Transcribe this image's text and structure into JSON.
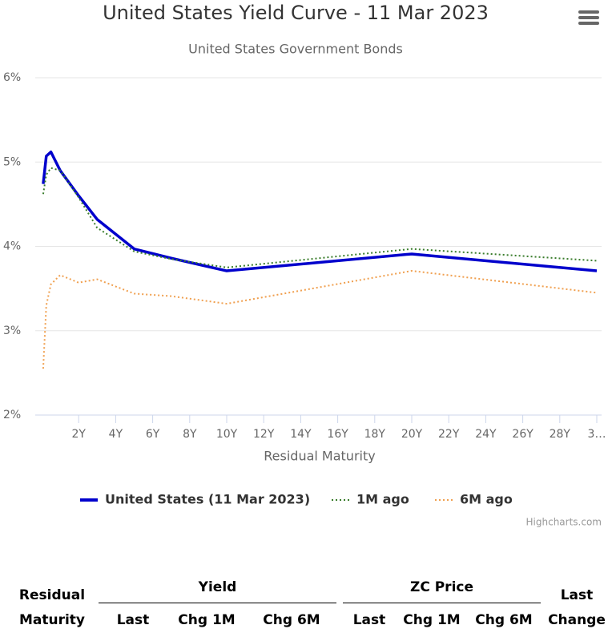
{
  "chart_data": {
    "type": "line",
    "title": "United States Yield Curve - 11 Mar 2023",
    "subtitle": "United States Government Bonds",
    "x_label": "Residual Maturity",
    "x": [
      0.083,
      0.25,
      0.5,
      1,
      2,
      3,
      5,
      7,
      10,
      20,
      30
    ],
    "series": [
      {
        "name": "United States (11 Mar 2023)",
        "color": "#0000cc",
        "dash": "solid",
        "values": [
          4.74,
          5.07,
          5.12,
          4.9,
          4.6,
          4.32,
          3.97,
          3.86,
          3.71,
          3.91,
          3.71
        ]
      },
      {
        "name": "1M ago",
        "color": "#3a7d2c",
        "dash": "dotted",
        "values": [
          4.62,
          4.85,
          4.93,
          4.9,
          4.58,
          4.22,
          3.94,
          3.85,
          3.75,
          3.97,
          3.83
        ]
      },
      {
        "name": "6M ago",
        "color": "#f0a050",
        "dash": "dotted",
        "values": [
          2.55,
          3.3,
          3.55,
          3.66,
          3.57,
          3.61,
          3.44,
          3.41,
          3.32,
          3.71,
          3.45
        ]
      }
    ],
    "xlim": [
      0,
      30
    ],
    "xticks": [
      {
        "value": 2,
        "label": "2Y"
      },
      {
        "value": 4,
        "label": "4Y"
      },
      {
        "value": 6,
        "label": "6Y"
      },
      {
        "value": 8,
        "label": "8Y"
      },
      {
        "value": 10,
        "label": "10Y"
      },
      {
        "value": 12,
        "label": "12Y"
      },
      {
        "value": 14,
        "label": "14Y"
      },
      {
        "value": 16,
        "label": "16Y"
      },
      {
        "value": 18,
        "label": "18Y"
      },
      {
        "value": 20,
        "label": "20Y"
      },
      {
        "value": 22,
        "label": "22Y"
      },
      {
        "value": 24,
        "label": "24Y"
      },
      {
        "value": 26,
        "label": "26Y"
      },
      {
        "value": 28,
        "label": "28Y"
      },
      {
        "value": 30,
        "label": "3…"
      }
    ],
    "ylim": [
      2,
      6
    ],
    "yticks": [
      {
        "value": 2,
        "label": "2%"
      },
      {
        "value": 3,
        "label": "3%"
      },
      {
        "value": 4,
        "label": "4%"
      },
      {
        "value": 5,
        "label": "5%"
      },
      {
        "value": 6,
        "label": "6%"
      }
    ],
    "grid": true,
    "legend": "bottom",
    "credits": "Highcharts.com"
  },
  "table": {
    "header": {
      "maturity": "Residual Maturity",
      "yield": "Yield",
      "zc_price": "ZC Price",
      "last_change": "Last Change",
      "sub": [
        "Last",
        "Chg 1M",
        "Chg 6M",
        "Last",
        "Chg 1M",
        "Chg 6M"
      ]
    }
  }
}
